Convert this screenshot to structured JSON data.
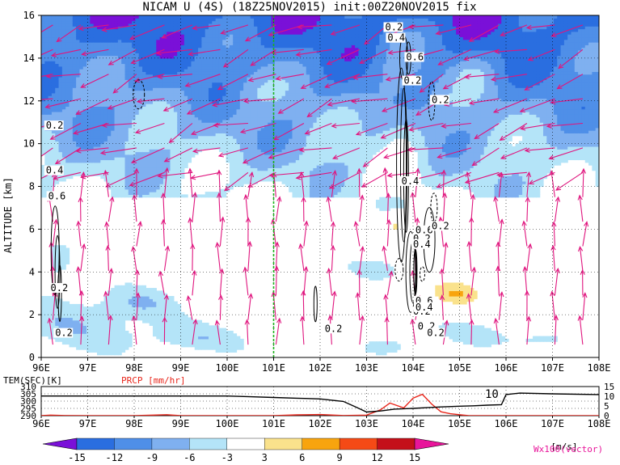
{
  "chart_data": [
    {
      "type": "heatmap",
      "title": "NICAM U (4S) (18Z25NOV2015) init:00Z20NOV2015 fix",
      "ylabel": "ALTITUDE [km]",
      "xlim": [
        96,
        108
      ],
      "ylim": [
        0,
        16
      ],
      "x_ticks": [
        "96E",
        "97E",
        "98E",
        "99E",
        "100E",
        "101E",
        "102E",
        "103E",
        "104E",
        "105E",
        "106E",
        "107E",
        "108E"
      ],
      "y_ticks": [
        "0",
        "2",
        "4",
        "6",
        "8",
        "10",
        "12",
        "14",
        "16"
      ],
      "grid": true,
      "marker_line_x": 101,
      "contour_labels": [
        "0.2",
        "0.4",
        "0.6",
        "0.2",
        "0.4",
        "0.6",
        "0.2",
        "0.2",
        "0.4",
        "0.6",
        "0.2",
        "0.2",
        "0.4",
        "0.2",
        "0.6",
        "0.4",
        "0.2",
        "0.2",
        "0.2",
        "0.2",
        "0.2"
      ],
      "colorbar": {
        "levels": [
          "-15",
          "-12",
          "-9",
          "-6",
          "-3",
          "3",
          "6",
          "9",
          "12",
          "15"
        ],
        "unit": "[m/s]",
        "colors": [
          "#7a10d8",
          "#2a6ee0",
          "#4f8fe8",
          "#7fb0f0",
          "#b4e4f8",
          "#ffffff",
          "#fae28c",
          "#f8a40e",
          "#f54a16",
          "#c4101a",
          "#e8159a"
        ]
      },
      "vector_label": "Wx100(vector)",
      "field_label": "U [m/s]"
    },
    {
      "type": "line",
      "labels": {
        "temp": "TEM(SFC)[K]",
        "prcp": "PRCP [mm/hr]"
      },
      "xlim": [
        96,
        108
      ],
      "x_ticks": [
        "96E",
        "97E",
        "98E",
        "99E",
        "100E",
        "101E",
        "102E",
        "103E",
        "104E",
        "105E",
        "106E",
        "107E",
        "108E"
      ],
      "temp_ticks": [
        "290",
        "295",
        "300",
        "305",
        "310"
      ],
      "prcp_ticks": [
        "0",
        "5",
        "10",
        "15"
      ],
      "inline_label": "10",
      "series": [
        {
          "name": "TEM(SFC)[K]",
          "color": "#000000",
          "x": [
            96,
            97,
            98,
            99,
            100,
            100.5,
            101,
            101.5,
            102,
            102.5,
            102.8,
            103,
            103.3,
            103.6,
            104,
            104.3,
            104.6,
            105,
            105.3,
            105.6,
            105.9,
            106,
            106.3,
            107,
            108
          ],
          "values": [
            303.5,
            303.5,
            303.5,
            303.5,
            303.5,
            303,
            302.5,
            302,
            301.5,
            299.8,
            295.5,
            292.5,
            293.2,
            294.5,
            295,
            295.5,
            296,
            296.5,
            296.8,
            297.2,
            297.5,
            304.5,
            305.5,
            305,
            304.5
          ]
        },
        {
          "name": "PRCP [mm/hr]",
          "color": "#e8271c",
          "x": [
            96,
            96.2,
            96.5,
            97,
            98,
            98.7,
            99,
            101,
            101.5,
            102,
            102.5,
            103,
            103.3,
            103.5,
            103.8,
            104,
            104.2,
            104.4,
            104.6,
            104.8,
            105,
            105.2,
            105.5,
            106,
            108
          ],
          "values": [
            0,
            0.3,
            0.1,
            0,
            0,
            0.5,
            0,
            0,
            0.4,
            0.6,
            0.1,
            0.3,
            3,
            6.5,
            4,
            9,
            11,
            6,
            2,
            1,
            0.5,
            0,
            0,
            0,
            0
          ]
        }
      ]
    }
  ]
}
